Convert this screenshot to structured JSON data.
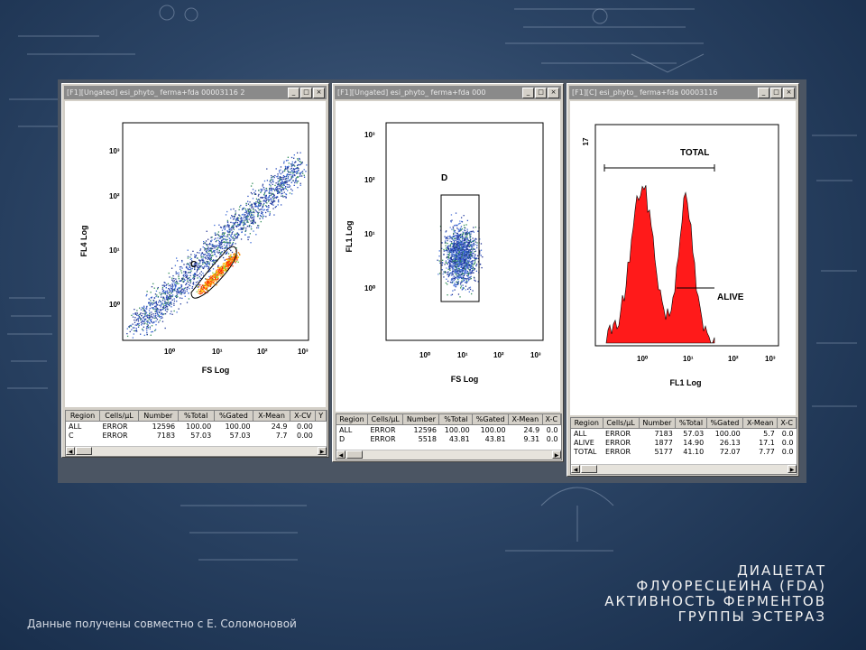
{
  "windows": [
    {
      "title": "[F1][Ungated] esi_phyto_ ferma+fda 00003116 2",
      "plot": {
        "ylabel": "FL4 Log",
        "xlabel": "FS Log",
        "gate_label": "C"
      },
      "table": {
        "headers": [
          "Region",
          "Cells/µL",
          "Number",
          "%Total",
          "%Gated",
          "X-Mean",
          "X-CV",
          "Y"
        ],
        "rows": [
          [
            "ALL",
            "ERROR",
            "12596",
            "100.00",
            "100.00",
            "24.9",
            "0.00"
          ],
          [
            "C",
            "ERROR",
            "7183",
            "57.03",
            "57.03",
            "7.7",
            "0.00"
          ]
        ]
      }
    },
    {
      "title": "[F1][Ungated] esi_phyto_ ferma+fda 000",
      "plot": {
        "ylabel": "FL1 Log",
        "xlabel": "FS Log",
        "gate_label": "D"
      },
      "table": {
        "headers": [
          "Region",
          "Cells/µL",
          "Number",
          "%Total",
          "%Gated",
          "X-Mean",
          "X-C"
        ],
        "rows": [
          [
            "ALL",
            "ERROR",
            "12596",
            "100.00",
            "100.00",
            "24.9",
            "0.0"
          ],
          [
            "D",
            "ERROR",
            "5518",
            "43.81",
            "43.81",
            "9.31",
            "0.0"
          ]
        ]
      }
    },
    {
      "title": "[F1][C] esi_phyto_ ferma+fda 00003116",
      "plot": {
        "ylabel": "17",
        "xlabel": "FL1 Log",
        "label_total": "TOTAL",
        "label_alive": "ALIVE"
      },
      "table": {
        "headers": [
          "Region",
          "Cells/µL",
          "Number",
          "%Total",
          "%Gated",
          "X-Mean",
          "X-C"
        ],
        "rows": [
          [
            "ALL",
            "ERROR",
            "7183",
            "57.03",
            "100.00",
            "5.7",
            "0.0"
          ],
          [
            "ALIVE",
            "ERROR",
            "1877",
            "14.90",
            "26.13",
            "17.1",
            "0.0"
          ],
          [
            "TOTAL",
            "ERROR",
            "5177",
            "41.10",
            "72.07",
            "7.77",
            "0.0"
          ]
        ]
      }
    }
  ],
  "ticks": {
    "x": [
      "10⁰",
      "10¹",
      "10²",
      "10³"
    ],
    "y": [
      "10³",
      "10²",
      "10¹",
      "10⁰"
    ]
  },
  "caption": {
    "line1": "ДИАЦЕТАТ",
    "line2": "ФЛУОРЕСЦЕИНА (FDA)",
    "line3": "АКТИВНОСТЬ ФЕРМЕНТОВ",
    "line4": "ГРУППЫ ЭСТЕРАЗ"
  },
  "credit": "Данные получены совместно с Е. Соломоновой",
  "colors": {
    "histogram": "#ff1a1a",
    "titlebar": "#8a8a8a",
    "window": "#d4d0c8"
  },
  "icons": [
    "minimize-icon",
    "maximize-icon",
    "close-icon",
    "scroll-left-icon",
    "scroll-right-icon"
  ]
}
